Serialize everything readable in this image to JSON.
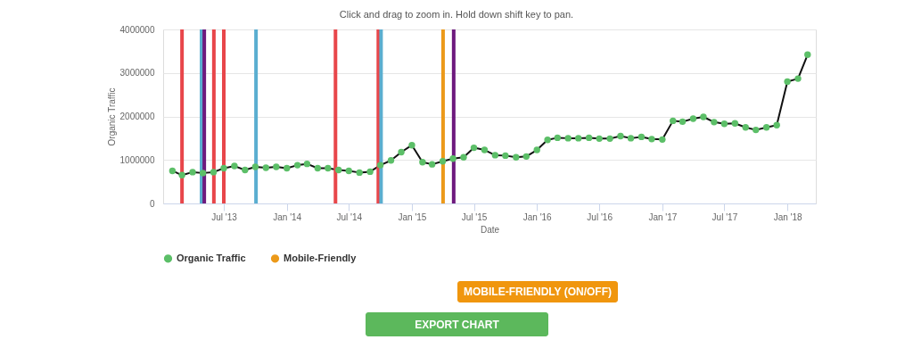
{
  "chart_data": {
    "type": "line",
    "subtitle": "Click and drag to zoom in. Hold down shift key to pan.",
    "xlabel": "Date",
    "ylabel": "Organic Traffic",
    "x": [
      "2013-02",
      "2013-03",
      "2013-04",
      "2013-05",
      "2013-06",
      "2013-07",
      "2013-08",
      "2013-09",
      "2013-10",
      "2013-11",
      "2013-12",
      "2014-01",
      "2014-02",
      "2014-03",
      "2014-04",
      "2014-05",
      "2014-06",
      "2014-07",
      "2014-08",
      "2014-09",
      "2014-10",
      "2014-11",
      "2014-12",
      "2015-01",
      "2015-02",
      "2015-03",
      "2015-04",
      "2015-05",
      "2015-06",
      "2015-07",
      "2015-08",
      "2015-09",
      "2015-10",
      "2015-11",
      "2015-12",
      "2016-01",
      "2016-02",
      "2016-03",
      "2016-04",
      "2016-05",
      "2016-06",
      "2016-07",
      "2016-08",
      "2016-09",
      "2016-10",
      "2016-11",
      "2016-12",
      "2017-01",
      "2017-02",
      "2017-03",
      "2017-04",
      "2017-05",
      "2017-06",
      "2017-07",
      "2017-08",
      "2017-09",
      "2017-10",
      "2017-11",
      "2017-12",
      "2018-01",
      "2018-02",
      "2018-03"
    ],
    "series": [
      {
        "name": "Organic Traffic",
        "color": "#5cbf68",
        "values": [
          750000,
          650000,
          720000,
          700000,
          720000,
          810000,
          860000,
          770000,
          840000,
          820000,
          840000,
          810000,
          880000,
          910000,
          810000,
          810000,
          770000,
          750000,
          710000,
          730000,
          880000,
          990000,
          1180000,
          1340000,
          950000,
          900000,
          970000,
          1030000,
          1060000,
          1280000,
          1230000,
          1110000,
          1100000,
          1060000,
          1080000,
          1230000,
          1460000,
          1510000,
          1500000,
          1500000,
          1510000,
          1490000,
          1490000,
          1550000,
          1500000,
          1530000,
          1480000,
          1470000,
          1900000,
          1880000,
          1950000,
          1990000,
          1870000,
          1830000,
          1840000,
          1750000,
          1690000,
          1750000,
          1800000,
          2800000,
          2870000,
          3420000
        ]
      }
    ],
    "xlim": [
      "2013-01-05",
      "2018-03-25"
    ],
    "xticks": [
      {
        "value": "2013-07-01",
        "label": "Jul '13"
      },
      {
        "value": "2014-01-01",
        "label": "Jan '14"
      },
      {
        "value": "2014-07-01",
        "label": "Jul '14"
      },
      {
        "value": "2015-01-01",
        "label": "Jan '15"
      },
      {
        "value": "2015-07-01",
        "label": "Jul '15"
      },
      {
        "value": "2016-01-01",
        "label": "Jan '16"
      },
      {
        "value": "2016-07-01",
        "label": "Jul '16"
      },
      {
        "value": "2017-01-01",
        "label": "Jan '17"
      },
      {
        "value": "2017-07-01",
        "label": "Jul '17"
      },
      {
        "value": "2018-01-01",
        "label": "Jan '18"
      }
    ],
    "ylim": [
      0,
      4000000
    ],
    "yticks": [
      0,
      1000000,
      2000000,
      3000000,
      4000000
    ],
    "ref_lines": [
      {
        "axis": "x",
        "value": "2013-03-01",
        "color": "#e8464a"
      },
      {
        "axis": "x",
        "value": "2013-04-27",
        "color": "#5aaed0"
      },
      {
        "axis": "x",
        "value": "2013-05-05",
        "color": "#6e1a7e"
      },
      {
        "axis": "x",
        "value": "2013-06-02",
        "color": "#e8464a"
      },
      {
        "axis": "x",
        "value": "2013-07-01",
        "color": "#e8464a"
      },
      {
        "axis": "x",
        "value": "2013-10-03",
        "color": "#5aaed0"
      },
      {
        "axis": "x",
        "value": "2014-05-23",
        "color": "#e8464a"
      },
      {
        "axis": "x",
        "value": "2014-09-25",
        "color": "#e8464a"
      },
      {
        "axis": "x",
        "value": "2014-10-03",
        "color": "#5aaed0"
      },
      {
        "axis": "x",
        "value": "2015-04-02",
        "color": "#ec9a1a",
        "label": "Mobile-Friendly"
      },
      {
        "axis": "x",
        "value": "2015-05-03",
        "color": "#6e1a7e"
      }
    ],
    "annotations": [
      "MOBILE-FRIENDLY (ON/OFF)",
      "EXPORT CHART"
    ],
    "grid": "y",
    "legend": "bottom",
    "marker": "circle",
    "line_style": "solid"
  }
}
